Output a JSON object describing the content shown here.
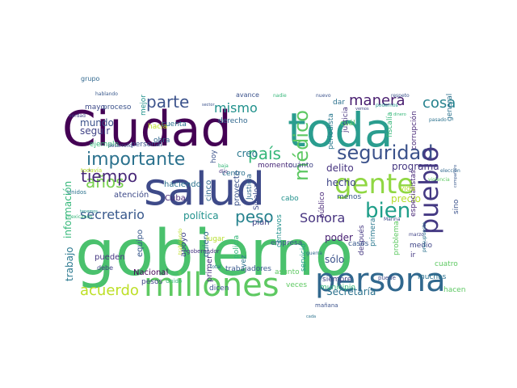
{
  "words": [
    {
      "text": "gobierno",
      "color": "#4ac16d"
    },
    {
      "text": "Ciudad",
      "color": "#440154"
    },
    {
      "text": "toda",
      "color": "#2a9d8f"
    },
    {
      "text": "salud",
      "color": "#3e4a89"
    },
    {
      "text": "persona",
      "color": "#31688e"
    },
    {
      "text": "millones",
      "color": "#5ec962"
    },
    {
      "text": "gente",
      "color": "#90d743"
    },
    {
      "text": "seguridad",
      "color": "#3b528b"
    },
    {
      "text": "pueblo",
      "color": "#443983"
    },
    {
      "text": "importante",
      "color": "#2c728e"
    },
    {
      "text": "país",
      "color": "#35b779"
    },
    {
      "text": "bien",
      "color": "#1f9e89"
    },
    {
      "text": "años",
      "color": "#7ad151"
    },
    {
      "text": "tiempo",
      "color": "#482878"
    },
    {
      "text": "secretario",
      "color": "#38588c"
    },
    {
      "text": "peso",
      "color": "#26828e"
    },
    {
      "text": "Sonora",
      "color": "#46337f"
    },
    {
      "text": "médico",
      "color": "#5dc863"
    },
    {
      "text": "parte",
      "color": "#3b528b"
    },
    {
      "text": "mismo",
      "color": "#21918c"
    },
    {
      "text": "manera",
      "color": "#481d6f"
    },
    {
      "text": "cosa",
      "color": "#26828e"
    },
    {
      "text": "acuerdo",
      "color": "#bddf26"
    },
    {
      "text": "Secretaría",
      "color": "#2c728e"
    },
    {
      "text": "programa",
      "color": "#453781"
    },
    {
      "text": "información",
      "color": "#35b779"
    },
    {
      "text": "política",
      "color": "#21918c"
    },
    {
      "text": "poder",
      "color": "#482173"
    },
    {
      "text": "mundo",
      "color": "#3b528b"
    },
    {
      "text": "seguir",
      "color": "#414487"
    },
    {
      "text": "creo",
      "color": "#2a788e"
    },
    {
      "text": "delito",
      "color": "#46337f"
    },
    {
      "text": "hecho",
      "color": "#404688"
    },
    {
      "text": "precio",
      "color": "#b5de2b"
    },
    {
      "text": "trabajo",
      "color": "#2a788e"
    },
    {
      "text": "sólo",
      "color": "#3b528b"
    },
    {
      "text": "Nacional",
      "color": "#440154"
    },
    {
      "text": "haciendo",
      "color": "#2c728e"
    },
    {
      "text": "apoyo",
      "color": "#404688"
    },
    {
      "text": "proyecto",
      "color": "#3b528b"
    },
    {
      "text": "plan",
      "color": "#414487"
    },
    {
      "text": "equipo",
      "color": "#38588c"
    },
    {
      "text": "quiero",
      "color": "#31688e"
    },
    {
      "text": "pueden",
      "color": "#453781"
    },
    {
      "text": "atención",
      "color": "#3e4a89"
    },
    {
      "text": "Cuba",
      "color": "#482878"
    },
    {
      "text": "cinco",
      "color": "#31688e"
    },
    {
      "text": "primer",
      "color": "#46337f"
    },
    {
      "text": "dicen",
      "color": "#3b528b"
    },
    {
      "text": "pesos",
      "color": "#414487"
    },
    {
      "text": "trabajadores",
      "color": "#38588c"
    },
    {
      "text": "asunto",
      "color": "#5ec962"
    },
    {
      "text": "momento",
      "color": "#482878"
    },
    {
      "text": "cuánto",
      "color": "#414487"
    },
    {
      "text": "Sinaloa",
      "color": "#3e4a89"
    },
    {
      "text": "Justicia",
      "color": "#31688e"
    },
    {
      "text": "centro",
      "color": "#2c728e"
    },
    {
      "text": "policía",
      "color": "#35b779"
    },
    {
      "text": "empresa",
      "color": "#3b528b"
    },
    {
      "text": "centavos",
      "color": "#21918c"
    },
    {
      "text": "servicio",
      "color": "#1f9e89"
    },
    {
      "text": "siempre",
      "color": "#414487"
    },
    {
      "text": "después",
      "color": "#453781"
    },
    {
      "text": "primera",
      "color": "#2a788e"
    },
    {
      "text": "problema",
      "color": "#5ec962"
    },
    {
      "text": "medio",
      "color": "#404688"
    },
    {
      "text": "ir",
      "color": "#443983"
    },
    {
      "text": "cuatro",
      "color": "#5ec962"
    },
    {
      "text": "muchas",
      "color": "#2c728e"
    },
    {
      "text": "hacen",
      "color": "#5dc863"
    },
    {
      "text": "municipio",
      "color": "#35b779"
    },
    {
      "text": "veces",
      "color": "#5ec962"
    },
    {
      "text": "especialistas",
      "color": "#482878"
    },
    {
      "text": "general",
      "color": "#2c728e"
    },
    {
      "text": "sino",
      "color": "#3b528b"
    },
    {
      "text": "menos",
      "color": "#38588c"
    },
    {
      "text": "vida",
      "color": "#b5de2b"
    },
    {
      "text": "justicia",
      "color": "#46337f"
    },
    {
      "text": "fiscalía",
      "color": "#35b779"
    },
    {
      "text": "corrupción",
      "color": "#482878"
    },
    {
      "text": "periodista",
      "color": "#2a788e"
    },
    {
      "text": "cuál",
      "color": "#5ec962"
    },
    {
      "text": "dar",
      "color": "#2c728e"
    },
    {
      "text": "proceso",
      "color": "#3b528b"
    },
    {
      "text": "mejor",
      "color": "#21918c"
    },
    {
      "text": "cuenta",
      "color": "#2c728e"
    },
    {
      "text": "derecho",
      "color": "#31688e"
    },
    {
      "text": "mayo",
      "color": "#3e4a89"
    },
    {
      "text": "hacia",
      "color": "#bddf26"
    },
    {
      "text": "personal",
      "color": "#3b528b"
    },
    {
      "text": "obra",
      "color": "#31688e"
    },
    {
      "text": "ejemplo",
      "color": "#35b779"
    },
    {
      "text": "hoy",
      "color": "#3b528b"
    },
    {
      "text": "lugar",
      "color": "#b5de2b"
    },
    {
      "text": "Unidos",
      "color": "#2c728e"
    },
    {
      "text": "mañana",
      "color": "#3b528b"
    },
    {
      "text": "Unido",
      "color": "#35b779"
    },
    {
      "text": "cabo",
      "color": "#21918c"
    },
    {
      "text": "público",
      "color": "#482878"
    },
    {
      "text": "vez",
      "color": "#2c728e"
    },
    {
      "text": "casos",
      "color": "#38588c"
    },
    {
      "text": "puede",
      "color": "#3e4a89"
    },
    {
      "text": "debe",
      "color": "#414487"
    },
    {
      "text": "gobernador",
      "color": "#453781"
    },
    {
      "text": "avance",
      "color": "#3b528b"
    },
    {
      "text": "nadie",
      "color": "#35b779"
    },
    {
      "text": "podemos",
      "color": "#21918c"
    },
    {
      "text": "pasado",
      "color": "#2c728e"
    },
    {
      "text": "respeto",
      "color": "#3b528b"
    },
    {
      "text": "guerra",
      "color": "#31688e"
    },
    {
      "text": "violencia",
      "color": "#5ec962"
    },
    {
      "text": "marzo",
      "color": "#414487"
    },
    {
      "text": "total",
      "color": "#2c728e"
    },
    {
      "text": "baja",
      "color": "#35b779"
    },
    {
      "text": "dijo",
      "color": "#46337f"
    },
    {
      "text": "todavía",
      "color": "#b5de2b"
    },
    {
      "text": "hablando",
      "color": "#38588c"
    },
    {
      "text": "verdad",
      "color": "#414487"
    },
    {
      "text": "desarrollo",
      "color": "#3b528b"
    },
    {
      "text": "presupuesto",
      "color": "#2c728e"
    },
    {
      "text": "Marina",
      "color": "#3e4a89"
    },
    {
      "text": "trabajando",
      "color": "#bddf26"
    },
    {
      "text": "elección",
      "color": "#31688e"
    },
    {
      "text": "compañero",
      "color": "#38588c"
    },
    {
      "text": "mexicanos",
      "color": "#35b779"
    },
    {
      "text": "sector",
      "color": "#3b528b"
    },
    {
      "text": "tenemos",
      "color": "#21918c"
    },
    {
      "text": "cada",
      "color": "#2c728e"
    },
    {
      "text": "vemos",
      "color": "#414487"
    },
    {
      "text": "nuevo",
      "color": "#3b528b"
    },
    {
      "text": "dinero",
      "color": "#35b779"
    },
    {
      "text": "grupo",
      "color": "#31688e"
    }
  ]
}
